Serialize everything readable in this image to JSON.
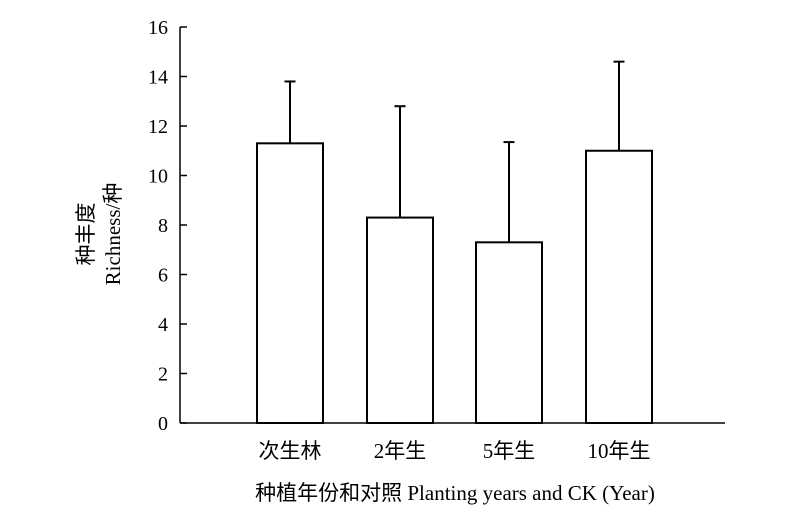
{
  "chart_data": {
    "type": "bar",
    "categories": [
      "次生林",
      "2年生",
      "5年生",
      "10年生"
    ],
    "values": [
      11.3,
      8.3,
      7.3,
      11.0
    ],
    "error_upper": [
      13.8,
      12.8,
      11.35,
      14.6
    ],
    "xlabel": "种植年份和对照 Planting years and CK (Year)",
    "ylabel": [
      "种丰度",
      "Richness/种"
    ],
    "ylim": [
      0,
      16
    ],
    "yticks": [
      0,
      2,
      4,
      6,
      8,
      10,
      12,
      14,
      16
    ],
    "grid": false,
    "legend": "none",
    "bar_fill": "#ffffff",
    "bar_stroke": "#000000"
  }
}
